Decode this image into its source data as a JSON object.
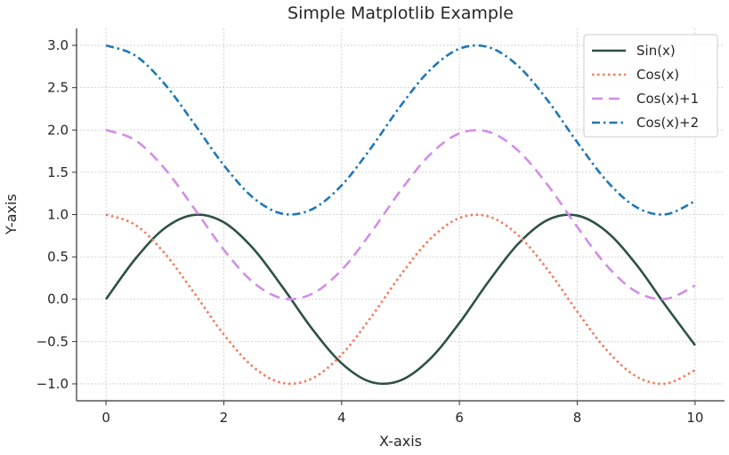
{
  "chart_data": {
    "type": "line",
    "title": "Simple Matplotlib Example",
    "xlabel": "X-axis",
    "ylabel": "Y-axis",
    "xlim": [
      -0.5,
      10.5
    ],
    "ylim": [
      -1.2,
      3.2
    ],
    "xticks": [
      0,
      2,
      4,
      6,
      8,
      10
    ],
    "xtick_labels": [
      "0",
      "2",
      "4",
      "6",
      "8",
      "10"
    ],
    "yticks": [
      -1.0,
      -0.5,
      0.0,
      0.5,
      1.0,
      1.5,
      2.0,
      2.5,
      3.0
    ],
    "ytick_labels": [
      "−1.0",
      "−0.5",
      "0.0",
      "0.5",
      "1.0",
      "1.5",
      "2.0",
      "2.5",
      "3.0"
    ],
    "grid": true,
    "legend_position": "top-right",
    "x": [
      0,
      0.5,
      1,
      1.5,
      2,
      2.5,
      3,
      3.5,
      4,
      4.5,
      5,
      5.5,
      6,
      6.5,
      7,
      7.5,
      8,
      8.5,
      9,
      9.5,
      10
    ],
    "series": [
      {
        "name": "Sin(x)",
        "color": "#2f5145",
        "style": "solid",
        "values": [
          0.0,
          0.479,
          0.841,
          0.997,
          0.909,
          0.598,
          0.141,
          -0.351,
          -0.757,
          -0.978,
          -0.959,
          -0.706,
          -0.279,
          0.215,
          0.657,
          0.938,
          0.989,
          0.798,
          0.412,
          -0.075,
          -0.544
        ]
      },
      {
        "name": "Cos(x)",
        "color": "#f47a5b",
        "style": "dotted",
        "values": [
          1.0,
          0.878,
          0.54,
          0.071,
          -0.416,
          -0.801,
          -0.99,
          -0.936,
          -0.654,
          -0.211,
          0.284,
          0.709,
          0.96,
          0.977,
          0.754,
          0.347,
          -0.146,
          -0.602,
          -0.911,
          -0.997,
          -0.839
        ]
      },
      {
        "name": "Cos(x)+1",
        "color": "#d28ee6",
        "style": "dashed",
        "values": [
          2.0,
          1.878,
          1.54,
          1.071,
          0.584,
          0.199,
          0.01,
          0.064,
          0.346,
          0.789,
          1.284,
          1.709,
          1.96,
          1.977,
          1.754,
          1.347,
          0.854,
          0.398,
          0.089,
          0.003,
          0.161
        ]
      },
      {
        "name": "Cos(x)+2",
        "color": "#1f77b4",
        "style": "dashdot",
        "values": [
          3.0,
          2.878,
          2.54,
          2.071,
          1.584,
          1.199,
          1.01,
          1.064,
          1.346,
          1.789,
          2.284,
          2.709,
          2.96,
          2.977,
          2.754,
          2.347,
          1.854,
          1.398,
          1.089,
          1.003,
          1.161
        ]
      }
    ]
  }
}
